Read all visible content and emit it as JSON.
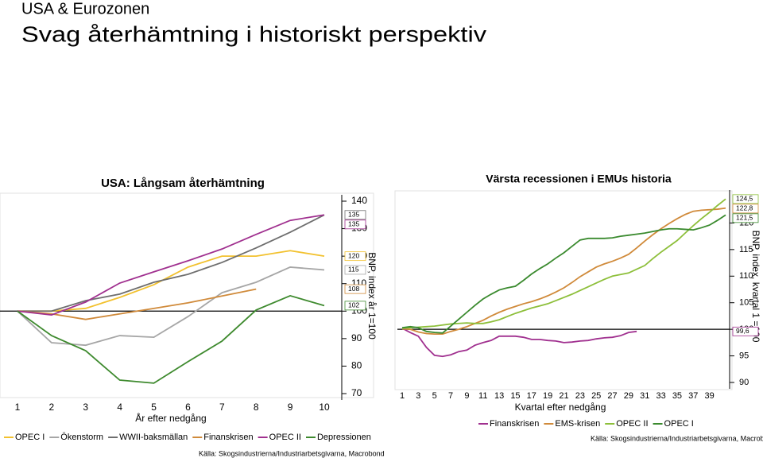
{
  "header": {
    "kicker": "USA & Eurozonen",
    "title": "Svag återhämtning i historiskt perspektiv"
  },
  "chart_data": [
    {
      "type": "line",
      "title": "USA: Långsam återhämtning",
      "x": [
        1,
        2,
        3,
        4,
        5,
        6,
        7,
        8,
        9,
        10
      ],
      "xlim": [
        1,
        10
      ],
      "xticks": [
        1,
        2,
        3,
        4,
        5,
        6,
        7,
        8,
        9,
        10
      ],
      "xlabel": "År efter nedgång",
      "ylabel": "BNP, index år 1=100",
      "ylim": [
        70,
        140
      ],
      "yticks": [
        70,
        80,
        90,
        100,
        110,
        120,
        130,
        140
      ],
      "reference_line": 100,
      "series": [
        {
          "name": "OPEC I",
          "color": "#f2c12e",
          "values": [
            100,
            100,
            101,
            105,
            109.6,
            116,
            120,
            120,
            122,
            120
          ]
        },
        {
          "name": "Ökenstorm",
          "color": "#a6a6a6",
          "values": [
            100,
            88.5,
            87.6,
            91.1,
            90.5,
            98,
            106.7,
            110.5,
            116,
            115
          ]
        },
        {
          "name": "WWII-baksmällan",
          "color": "#6e6e6e",
          "values": [
            100,
            100,
            103.8,
            106.2,
            110.5,
            113.4,
            117.7,
            123,
            128.7,
            135
          ]
        },
        {
          "name": "Finanskrisen",
          "color": "#d08a3a",
          "values": [
            100,
            99,
            97,
            99,
            101,
            103,
            105.5,
            108,
            null,
            null
          ]
        },
        {
          "name": "OPEC II",
          "color": "#a0308f",
          "values": [
            100,
            98.6,
            103.3,
            110.2,
            114.3,
            118.3,
            122.6,
            127.9,
            133,
            135
          ]
        },
        {
          "name": "Depressionen",
          "color": "#3e8a2e",
          "values": [
            100,
            91.1,
            85.6,
            74.9,
            73.8,
            81.6,
            89.1,
            100.4,
            105.6,
            102
          ]
        }
      ],
      "source": "Källa: Skogsindustrierna/Industriarbetsgivarna, Macrobond"
    },
    {
      "type": "line",
      "title": "Värsta recessionen i EMUs historia",
      "x": [
        1,
        2,
        3,
        4,
        5,
        6,
        7,
        8,
        9,
        10,
        11,
        12,
        13,
        14,
        15,
        16,
        17,
        18,
        19,
        20,
        21,
        22,
        23,
        24,
        25,
        26,
        27,
        28,
        29,
        30,
        31,
        32,
        33,
        34,
        35,
        36,
        37,
        38,
        39,
        40,
        41
      ],
      "xlim": [
        1,
        41
      ],
      "xticks": [
        1,
        3,
        5,
        7,
        9,
        11,
        13,
        15,
        17,
        19,
        21,
        23,
        25,
        27,
        29,
        31,
        33,
        35,
        37,
        39
      ],
      "xlabel": "Kvartal efter nedgång",
      "ylabel": "BNP, index, kvartal 1 =100",
      "ylim": [
        90,
        125
      ],
      "yticks": [
        90,
        95,
        100,
        105,
        110,
        115,
        120
      ],
      "reference_line": 100,
      "series": [
        {
          "name": "Finanskrisen",
          "color": "#a0308f",
          "values": [
            100.2,
            99.4,
            98.7,
            96.6,
            95.1,
            94.9,
            95.2,
            95.8,
            96.1,
            97,
            97.5,
            97.9,
            98.7,
            98.7,
            98.7,
            98.5,
            98.1,
            98.1,
            97.9,
            97.8,
            97.5,
            97.6,
            97.8,
            97.9,
            98.2,
            98.4,
            98.5,
            98.8,
            99.4,
            99.6,
            null,
            null,
            null,
            null,
            null,
            null,
            null,
            null,
            null,
            null,
            null
          ],
          "value_labels": [
            null,
            null,
            null,
            null,
            null,
            null,
            null,
            null,
            null,
            null,
            null,
            null,
            null,
            null,
            null,
            null,
            null,
            null,
            null,
            null,
            null,
            null,
            null,
            null,
            null,
            null,
            null,
            null,
            null,
            "99,6",
            null,
            null,
            null,
            null,
            null,
            null,
            null,
            null,
            null,
            null,
            null
          ]
        },
        {
          "name": "EMS-krisen",
          "color": "#d08a3a",
          "values": [
            100.1,
            100,
            99.5,
            99.2,
            99.1,
            99.1,
            99.6,
            100,
            100.5,
            101.1,
            101.7,
            102.5,
            103.2,
            103.8,
            104.3,
            104.8,
            105.2,
            105.7,
            106.3,
            107,
            107.8,
            108.8,
            109.9,
            110.8,
            111.7,
            112.3,
            112.8,
            113.4,
            114.1,
            115.3,
            116.6,
            117.8,
            118.9,
            119.9,
            120.8,
            121.6,
            122.2,
            122.4,
            122.5,
            122.6,
            122.8
          ],
          "value_labels": [
            null,
            null,
            null,
            null,
            null,
            null,
            null,
            null,
            null,
            null,
            null,
            null,
            null,
            null,
            null,
            null,
            null,
            null,
            null,
            null,
            null,
            null,
            null,
            null,
            null,
            null,
            null,
            null,
            null,
            null,
            null,
            null,
            null,
            null,
            null,
            null,
            null,
            null,
            null,
            null,
            "122,8"
          ]
        },
        {
          "name": "OPEC II",
          "color": "#8dbf3a",
          "values": [
            100.2,
            100.3,
            100.4,
            100.5,
            100.6,
            100.8,
            101,
            101.1,
            101.2,
            101.1,
            101.1,
            101.4,
            101.8,
            102.4,
            103,
            103.5,
            104,
            104.4,
            104.8,
            105.4,
            106,
            106.6,
            107.3,
            108,
            108.7,
            109.4,
            110,
            110.3,
            110.6,
            111.3,
            112,
            113.3,
            114.5,
            115.6,
            116.7,
            118.1,
            119.5,
            120.8,
            122,
            123.3,
            124.5
          ],
          "value_labels": [
            null,
            null,
            null,
            null,
            null,
            null,
            null,
            null,
            null,
            null,
            null,
            null,
            null,
            null,
            null,
            null,
            null,
            null,
            null,
            null,
            null,
            null,
            null,
            null,
            null,
            null,
            null,
            null,
            null,
            null,
            null,
            null,
            null,
            null,
            null,
            null,
            null,
            null,
            null,
            null,
            "124,5"
          ]
        },
        {
          "name": "OPEC I",
          "color": "#3a8a2e",
          "values": [
            100.3,
            100.5,
            100.3,
            99.6,
            99.4,
            99.3,
            100.6,
            101.9,
            103.2,
            104.5,
            105.7,
            106.6,
            107.4,
            107.8,
            108.1,
            109.2,
            110.4,
            111.4,
            112.3,
            113.4,
            114.4,
            115.6,
            116.8,
            117.1,
            117.1,
            117.1,
            117.2,
            117.5,
            117.7,
            117.9,
            118.1,
            118.4,
            118.7,
            118.9,
            118.9,
            118.8,
            118.7,
            119.1,
            119.6,
            120.5,
            121.5
          ],
          "value_labels": [
            null,
            null,
            null,
            null,
            null,
            null,
            null,
            null,
            null,
            null,
            null,
            null,
            null,
            null,
            null,
            null,
            null,
            null,
            null,
            null,
            null,
            null,
            null,
            null,
            null,
            null,
            null,
            null,
            null,
            null,
            null,
            null,
            null,
            null,
            null,
            null,
            null,
            null,
            null,
            null,
            "121,5"
          ]
        }
      ],
      "source": "Källa: Skogsindustrierna/Industriarbetsgivarna, Macrobond"
    }
  ]
}
